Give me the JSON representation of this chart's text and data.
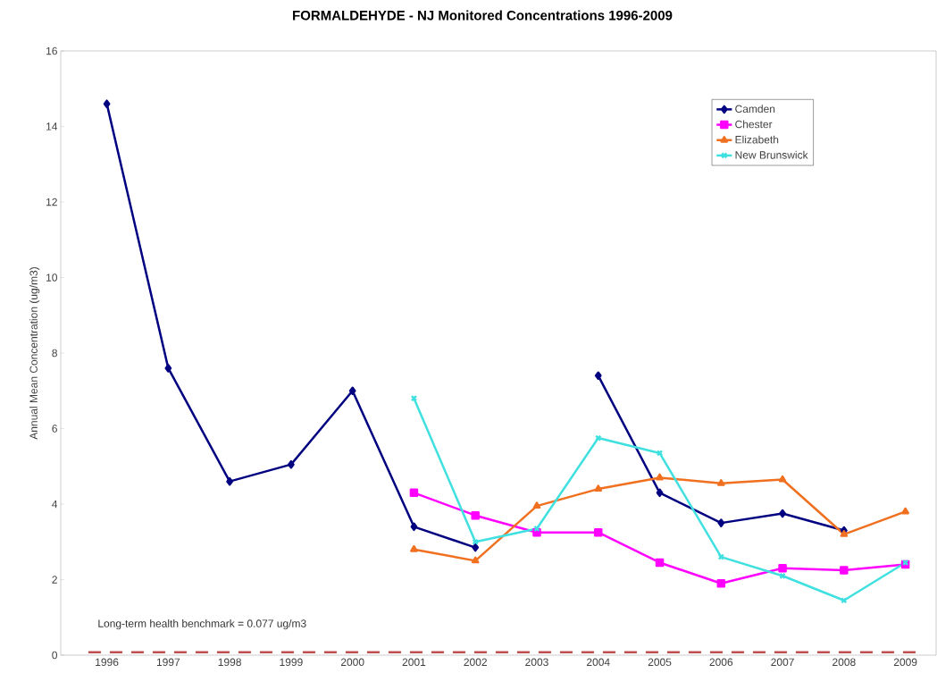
{
  "chart_data": {
    "type": "line",
    "title": "FORMALDEHYDE - NJ Monitored Concentrations 1996-2009",
    "ylabel": "Annual Mean Concentration (ug/m3)",
    "categories": [
      "1996",
      "1997",
      "1998",
      "1999",
      "2000",
      "2001",
      "2002",
      "2003",
      "2004",
      "2005",
      "2006",
      "2007",
      "2008",
      "2009"
    ],
    "series": [
      {
        "name": "Camden",
        "color": "#000080",
        "marker": "diamond",
        "values": [
          14.6,
          7.6,
          4.6,
          5.05,
          7.0,
          3.4,
          2.85,
          null,
          7.4,
          4.3,
          3.5,
          3.75,
          3.3,
          null
        ]
      },
      {
        "name": "Chester",
        "color": "#ff00ff",
        "marker": "square",
        "values": [
          null,
          null,
          null,
          null,
          null,
          4.3,
          3.7,
          3.25,
          3.25,
          2.45,
          1.9,
          2.3,
          2.25,
          2.4
        ]
      },
      {
        "name": "Elizabeth",
        "color": "#f07020",
        "marker": "triangle",
        "values": [
          null,
          null,
          null,
          null,
          null,
          2.8,
          2.5,
          3.95,
          4.4,
          4.7,
          4.55,
          4.65,
          3.2,
          3.8
        ]
      },
      {
        "name": "New Brunswick",
        "color": "#40e0e0",
        "marker": "cross",
        "values": [
          null,
          null,
          null,
          null,
          null,
          6.8,
          3.0,
          3.35,
          5.75,
          5.35,
          2.6,
          2.1,
          1.45,
          2.45
        ]
      }
    ],
    "ylim": [
      0,
      16
    ],
    "yticks": [
      0,
      2,
      4,
      6,
      8,
      10,
      12,
      14,
      16
    ],
    "ref_lines": [
      {
        "axis": "y",
        "value": 0.077,
        "label": "Long-term health benchmark = 0.077 ug/m3",
        "color": "#c05050",
        "line_style": "dashed"
      }
    ],
    "legend": "top right",
    "line_style": "solid"
  }
}
